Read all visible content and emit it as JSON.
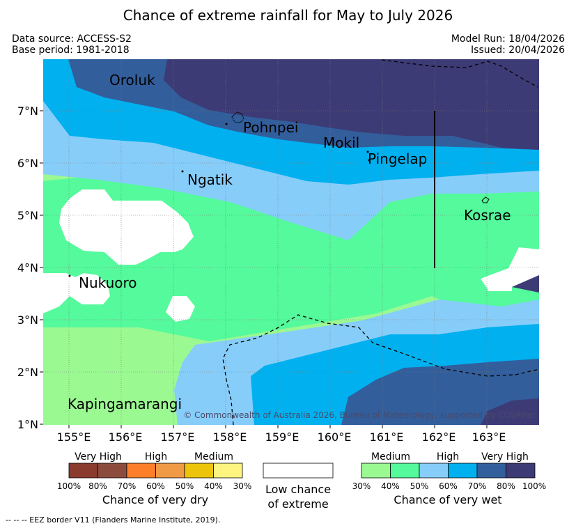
{
  "title": "Chance of extreme rainfall for May to July 2026",
  "meta": {
    "source": "Data source: ACCESS-S2",
    "base_period": "Base period: 1981-2018",
    "model_run": "Model Run: 18/04/2026",
    "issued": "Issued: 20/04/2026"
  },
  "map": {
    "lat_ticks": [
      "7°N",
      "6°N",
      "5°N",
      "4°N",
      "3°N",
      "2°N",
      "1°N"
    ],
    "lon_ticks": [
      "155°E",
      "156°E",
      "157°E",
      "158°E",
      "159°E",
      "160°E",
      "161°E",
      "162°E",
      "163°E"
    ],
    "places": {
      "oroluk": "Oroluk",
      "pohnpei": "Pohnpei",
      "mokil": "Mokil",
      "pingelap": "Pingelap",
      "ngatik": "Ngatik",
      "kosrae": "Kosrae",
      "nukuoro": "Nukuoro",
      "kapingamarangi": "Kapingamarangi"
    },
    "copyright": "© Commonwealth of Australia 2026, Bureau of Meteorology, supported by COSPPac"
  },
  "legend": {
    "dry": {
      "categories": [
        "Very High",
        "High",
        "Medium"
      ],
      "colors": [
        "#8b3a2e",
        "#8b4c3e",
        "#fe7f2a",
        "#f09a45",
        "#edc40c",
        "#fef581"
      ],
      "pcts": [
        "100%",
        "80%",
        "70%",
        "60%",
        "50%",
        "40%",
        "30%"
      ],
      "label": "Chance of very dry"
    },
    "low": {
      "line1": "Low chance",
      "line2": "of extreme"
    },
    "wet": {
      "categories": [
        "Medium",
        "High",
        "Very High"
      ],
      "colors": [
        "#9bf992",
        "#54fa9b",
        "#87cdfa",
        "#00b0ef",
        "#325e9c",
        "#3c3b75"
      ],
      "pcts": [
        "30%",
        "40%",
        "50%",
        "60%",
        "70%",
        "80%",
        "100%"
      ],
      "label": "Chance of very wet"
    }
  },
  "footnote": "-- -- -- EEZ border V11 (Flanders Marine Institute, 2019)."
}
